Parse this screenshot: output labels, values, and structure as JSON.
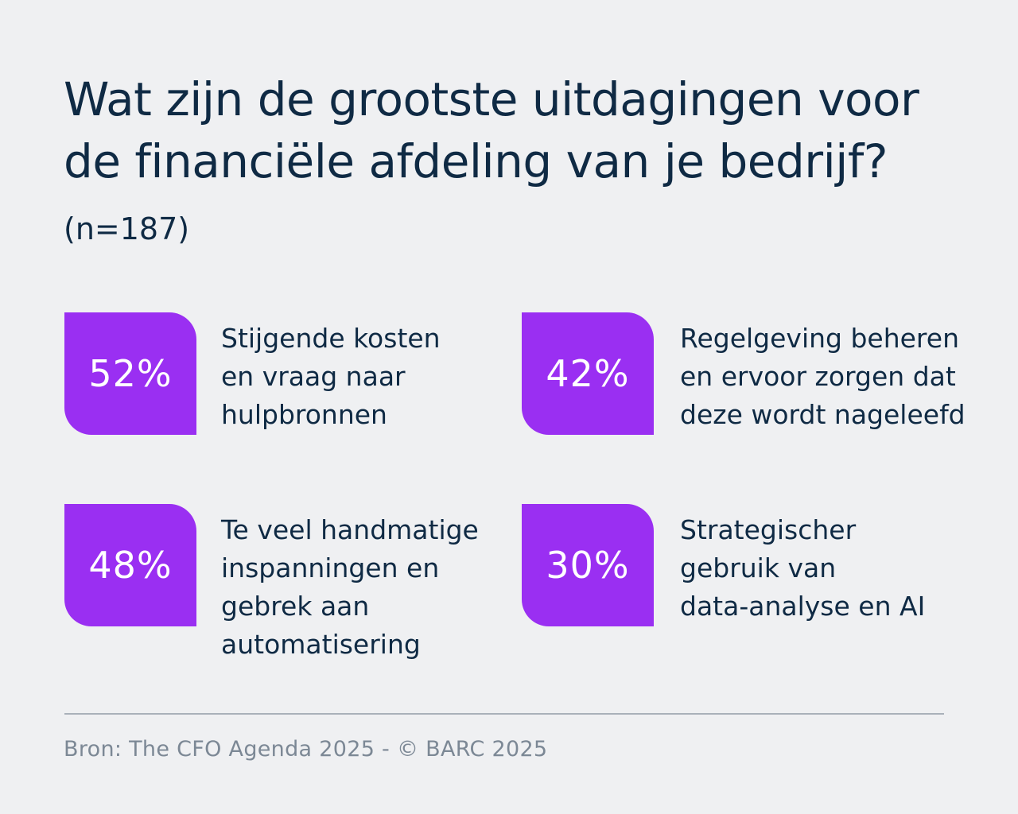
{
  "title": {
    "main": "Wat zijn de grootste uitdagingen voor de financiële afdeling van je bedrijf?",
    "sample": "(n=187)"
  },
  "colors": {
    "accent": "#9a2ff2",
    "text": "#0f2a44",
    "background": "#eff0f2",
    "muted": "#7c8895"
  },
  "chart_data": {
    "type": "table",
    "title": "Wat zijn de grootste uitdagingen voor de financiële afdeling van je bedrijf?",
    "sample_size": "(n=187)",
    "unit": "%",
    "items": [
      {
        "value": 52,
        "display": "52%",
        "label": "Stijgende kosten\nen vraag naar\nhulpbronnen"
      },
      {
        "value": 42,
        "display": "42%",
        "label": "Regelgeving beheren\nen ervoor zorgen dat\ndeze wordt nageleefd"
      },
      {
        "value": 48,
        "display": "48%",
        "label": "Te veel handmatige\ninspanningen en\ngebrek aan\nautomatisering"
      },
      {
        "value": 30,
        "display": "30%",
        "label": "Strategischer\ngebruik van\ndata-analyse en AI"
      }
    ]
  },
  "footer": {
    "source": "Bron: The CFO Agenda 2025 - © BARC 2025"
  }
}
